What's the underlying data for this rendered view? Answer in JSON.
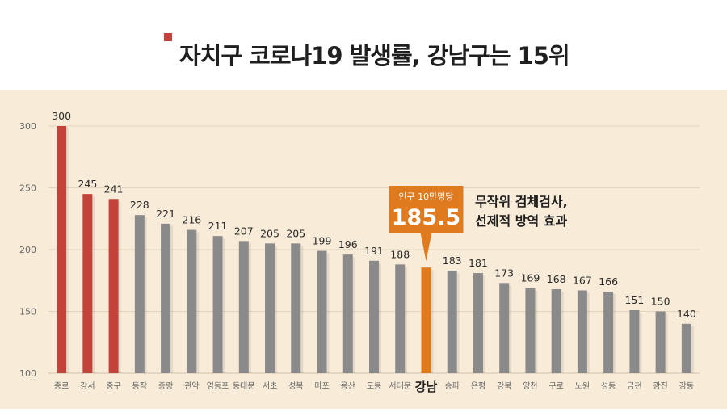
{
  "header": {
    "title": "자치구 코로나19 발생률, 강남구는 15위"
  },
  "colors": {
    "background": "#f8ecd9",
    "header_bg": "#ffffff",
    "title_mark": "#c8403a",
    "bar_red": "#c3433b",
    "bar_gray": "#8a8a8a",
    "bar_highlight": "#e07a1f",
    "callout_bg": "#e07a1f",
    "text_dark": "#2a2a2a",
    "axis_text": "#666666",
    "grid": "#e2d3bb"
  },
  "callout": {
    "label": "인구 10만명당",
    "value": "185.5"
  },
  "annotation": {
    "line1": "무작위 검체검사,",
    "line2": "선제적 방역 효과"
  },
  "chart_data": {
    "type": "bar",
    "title": "자치구 코로나19 발생률, 강남구는 15위",
    "xlabel": "",
    "ylabel": "",
    "ylim": [
      100,
      300
    ],
    "yticks": [
      100,
      150,
      200,
      250,
      300
    ],
    "grid": true,
    "categories": [
      "종로",
      "강서",
      "중구",
      "동작",
      "중랑",
      "관악",
      "영등포",
      "동대문",
      "서초",
      "성북",
      "마포",
      "용산",
      "도봉",
      "서대문",
      "강남",
      "송파",
      "은평",
      "강북",
      "양천",
      "구로",
      "노원",
      "성동",
      "금천",
      "광진",
      "강동"
    ],
    "values": [
      300,
      245,
      241,
      228,
      221,
      216,
      211,
      207,
      205,
      205,
      199,
      196,
      191,
      188,
      185.5,
      183,
      181,
      173,
      169,
      168,
      167,
      166,
      151,
      150,
      140
    ],
    "value_labels": [
      "300",
      "245",
      "241",
      "228",
      "221",
      "216",
      "211",
      "207",
      "205",
      "205",
      "199",
      "196",
      "191",
      "188",
      "",
      "183",
      "181",
      "173",
      "169",
      "168",
      "167",
      "166",
      "151",
      "150",
      "140"
    ],
    "bar_groups": [
      "red",
      "red",
      "red",
      "gray",
      "gray",
      "gray",
      "gray",
      "gray",
      "gray",
      "gray",
      "gray",
      "gray",
      "gray",
      "gray",
      "highlight",
      "gray",
      "gray",
      "gray",
      "gray",
      "gray",
      "gray",
      "gray",
      "gray",
      "gray",
      "gray"
    ],
    "highlight_category": "강남"
  }
}
